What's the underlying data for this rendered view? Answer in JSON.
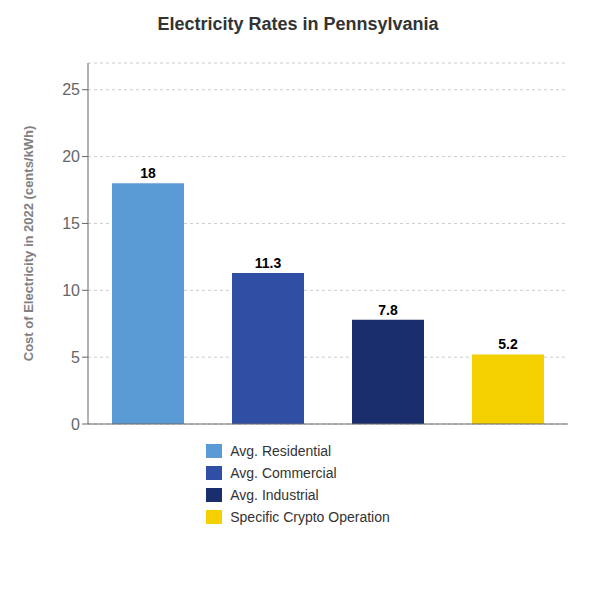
{
  "chart_data": {
    "type": "bar",
    "title": "Electricity Rates in Pennsylvania",
    "ylabel": "Cost of Electricity in 2022 (cents/kWh)",
    "categories": [
      "Avg. Residential",
      "Avg. Commercial",
      "Avg. Industrial",
      "Specific Crypto Operation"
    ],
    "values": [
      18,
      11.3,
      7.8,
      5.2
    ],
    "colors": [
      "#5b9bd5",
      "#2e4fa3",
      "#1a2e6e",
      "#f5d000"
    ],
    "ylim": [
      0,
      27
    ],
    "yticks": [
      0,
      5,
      10,
      15,
      20,
      25
    ],
    "grid": true,
    "data_labels": true,
    "legend": "bottom",
    "tick_labels": "y"
  }
}
